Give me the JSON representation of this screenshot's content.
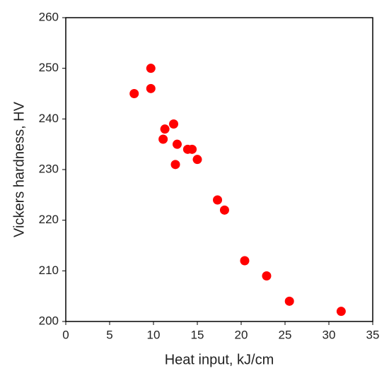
{
  "chart_data": {
    "type": "scatter",
    "x_label": "Heat input, kJ/cm",
    "y_label": "Vickers hardness, HV",
    "series": [
      {
        "color": "#ff0000",
        "x": [
          7.8,
          9.7,
          9.7,
          11.3,
          11.1,
          12.3,
          12.7,
          12.5,
          13.9,
          14.4,
          15.0,
          17.3,
          18.1,
          20.4,
          22.9,
          25.5,
          31.4
        ],
        "values": [
          245,
          250,
          246,
          238,
          236,
          239,
          235,
          231,
          234,
          234,
          232,
          224,
          222,
          212,
          209,
          204,
          202
        ]
      }
    ],
    "xlim": [
      0,
      35
    ],
    "xticks": [
      0,
      5,
      10,
      15,
      20,
      25,
      30,
      35
    ],
    "ylim": [
      200,
      260
    ],
    "yticks": [
      200,
      210,
      220,
      230,
      240,
      250,
      260
    ]
  }
}
